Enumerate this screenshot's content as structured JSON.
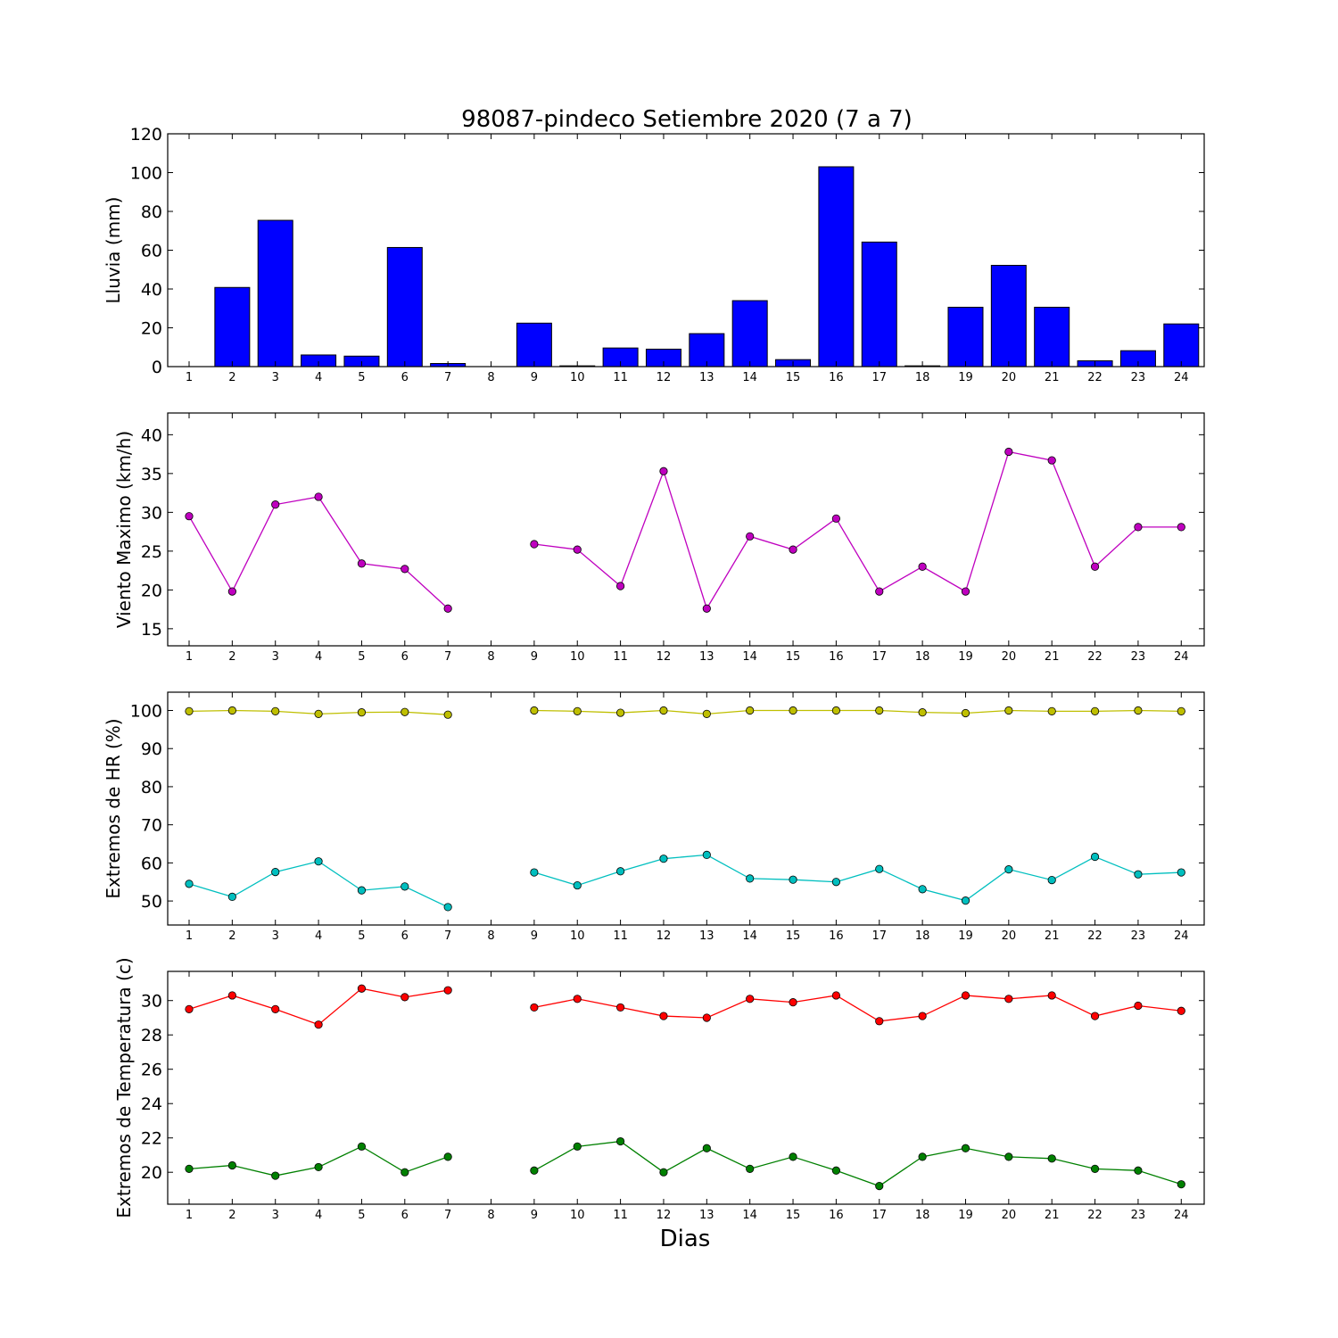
{
  "figure": {
    "title": "98087-pindeco Setiembre 2020  (7 a 7)",
    "xlabel": "Dias"
  },
  "chart_data": [
    {
      "type": "bar",
      "ylabel": "Lluvia (mm)",
      "ylim": [
        0,
        120
      ],
      "yticks": [
        0,
        20,
        40,
        60,
        80,
        100,
        120
      ],
      "categories": [
        "1",
        "2",
        "3",
        "4",
        "5",
        "6",
        "7",
        "8",
        "9",
        "10",
        "11",
        "12",
        "13",
        "14",
        "15",
        "16",
        "17",
        "18",
        "19",
        "20",
        "21",
        "22",
        "23",
        "24"
      ],
      "values": [
        0,
        40.8,
        75.4,
        6.0,
        5.4,
        61.4,
        1.6,
        0,
        22.4,
        0.4,
        9.6,
        9.0,
        17.0,
        34.0,
        3.6,
        103.0,
        64.2,
        0.4,
        30.6,
        52.2,
        30.6,
        3.0,
        8.2,
        22.0
      ],
      "color": "#0000ff"
    },
    {
      "type": "line",
      "ylabel": "Viento Maximo (km/h)",
      "ylim": [
        12.8,
        42.8
      ],
      "yticks": [
        15,
        20,
        25,
        30,
        35,
        40
      ],
      "categories": [
        "1",
        "2",
        "3",
        "4",
        "5",
        "6",
        "7",
        "8",
        "9",
        "10",
        "11",
        "12",
        "13",
        "14",
        "15",
        "16",
        "17",
        "18",
        "19",
        "20",
        "21",
        "22",
        "23",
        "24"
      ],
      "series": [
        {
          "color": "#bf00bf",
          "values": [
            29.5,
            19.8,
            31.0,
            32.0,
            23.4,
            22.7,
            17.6,
            null,
            25.9,
            25.2,
            20.5,
            35.3,
            17.6,
            26.9,
            25.2,
            29.2,
            19.8,
            23.0,
            19.8,
            37.8,
            36.7,
            23.0,
            28.1,
            28.1
          ]
        }
      ]
    },
    {
      "type": "line",
      "ylabel": "Extremos de HR (%)",
      "ylim": [
        43.7,
        104.8
      ],
      "yticks": [
        50,
        60,
        70,
        80,
        90,
        100
      ],
      "categories": [
        "1",
        "2",
        "3",
        "4",
        "5",
        "6",
        "7",
        "8",
        "9",
        "10",
        "11",
        "12",
        "13",
        "14",
        "15",
        "16",
        "17",
        "18",
        "19",
        "20",
        "21",
        "22",
        "23",
        "24"
      ],
      "series": [
        {
          "color": "#bfbf00",
          "values": [
            99.8,
            100.0,
            99.8,
            99.1,
            99.5,
            99.6,
            98.9,
            null,
            100.0,
            99.8,
            99.4,
            100.0,
            99.1,
            100.0,
            100.0,
            100.0,
            100.0,
            99.5,
            99.3,
            100.0,
            99.8,
            99.8,
            100.0,
            99.8
          ]
        },
        {
          "color": "#00bfbf",
          "values": [
            54.5,
            51.1,
            57.6,
            60.4,
            52.8,
            53.8,
            48.4,
            null,
            57.5,
            54.1,
            57.8,
            61.1,
            62.1,
            55.9,
            55.6,
            55.0,
            58.4,
            53.1,
            50.1,
            58.3,
            55.5,
            61.6,
            57.0,
            57.5
          ]
        }
      ]
    },
    {
      "type": "line",
      "ylabel": "Extremos de Temperatura (c)",
      "ylim": [
        18.14,
        31.7
      ],
      "yticks": [
        20,
        22,
        24,
        26,
        28,
        30
      ],
      "categories": [
        "1",
        "2",
        "3",
        "4",
        "5",
        "6",
        "7",
        "8",
        "9",
        "10",
        "11",
        "12",
        "13",
        "14",
        "15",
        "16",
        "17",
        "18",
        "19",
        "20",
        "21",
        "22",
        "23",
        "24"
      ],
      "series": [
        {
          "color": "#ff0000",
          "values": [
            29.5,
            30.3,
            29.5,
            28.6,
            30.7,
            30.2,
            30.6,
            null,
            29.6,
            30.1,
            29.6,
            29.1,
            29.0,
            30.1,
            29.9,
            30.3,
            28.8,
            29.1,
            30.3,
            30.1,
            30.3,
            29.1,
            29.7,
            29.4
          ]
        },
        {
          "color": "#008000",
          "values": [
            20.2,
            20.4,
            19.8,
            20.3,
            21.5,
            20.0,
            20.9,
            null,
            20.1,
            21.5,
            21.8,
            20.0,
            21.4,
            20.2,
            20.9,
            20.1,
            19.2,
            20.9,
            21.4,
            20.9,
            20.8,
            20.2,
            20.1,
            19.3
          ]
        }
      ]
    }
  ]
}
